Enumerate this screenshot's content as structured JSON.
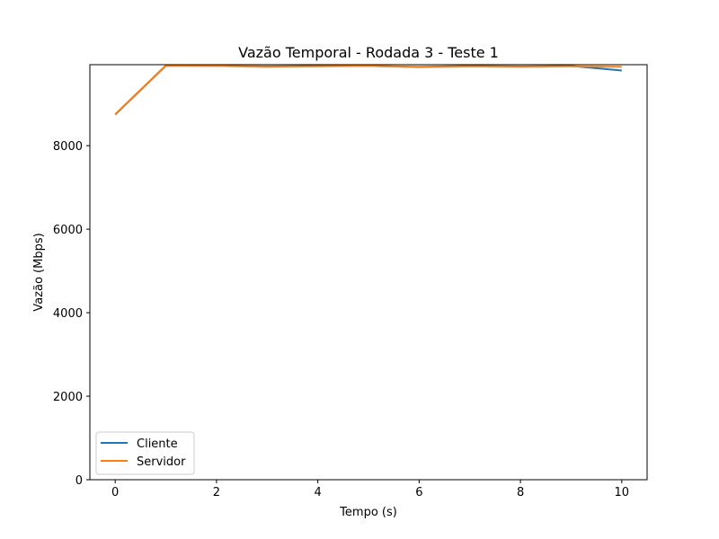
{
  "chart_data": {
    "type": "line",
    "title": "Vazão Temporal - Rodada 3 - Teste 1",
    "xlabel": "Tempo (s)",
    "ylabel": "Vazão (Mbps)",
    "xlim": [
      -0.5,
      10.5
    ],
    "ylim": [
      0,
      9940
    ],
    "xticks": [
      0,
      2,
      4,
      6,
      8,
      10
    ],
    "yticks": [
      0,
      2000,
      4000,
      6000,
      8000
    ],
    "x": [
      0,
      1,
      2,
      3,
      4,
      5,
      6,
      7,
      8,
      9,
      10
    ],
    "series": [
      {
        "name": "Cliente",
        "color": "#1f77b4",
        "values": [
          8750,
          9920,
          9910,
          9900,
          9910,
          9910,
          9890,
          9910,
          9900,
          9910,
          9800
        ]
      },
      {
        "name": "Servidor",
        "color": "#ff7f0e",
        "values": [
          8740,
          9910,
          9910,
          9890,
          9900,
          9910,
          9880,
          9900,
          9890,
          9900,
          9890
        ]
      }
    ],
    "legend": {
      "position": "lower-left"
    },
    "grid": false
  }
}
